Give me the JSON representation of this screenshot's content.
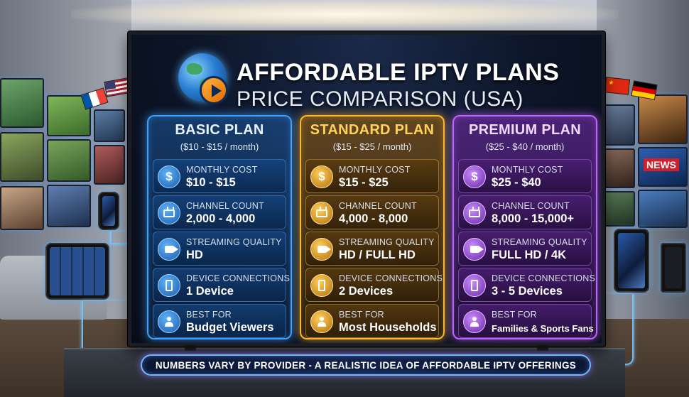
{
  "header": {
    "title_line1": "AFFORDABLE IPTV PLANS",
    "title_line2": "PRICE COMPARISON (USA)"
  },
  "plans": [
    {
      "name": "BASIC PLAN",
      "price_range": "($10 - $15 / month)",
      "accent": "#3ea0ff",
      "rows": [
        {
          "icon": "dollar-icon",
          "label": "MONTHLY COST",
          "value": "$10 - $15"
        },
        {
          "icon": "tv-icon",
          "label": "CHANNEL COUNT",
          "value": "2,000 - 4,000"
        },
        {
          "icon": "video-camera-icon",
          "label": "STREAMING QUALITY",
          "value": "HD"
        },
        {
          "icon": "smartphone-icon",
          "label": "DEVICE CONNECTIONS",
          "value": "1 Device"
        },
        {
          "icon": "user-icon",
          "label": "BEST FOR",
          "value": "Budget Viewers"
        }
      ]
    },
    {
      "name": "STANDARD PLAN",
      "price_range": "($15 - $25 / month)",
      "accent": "#ffb627",
      "rows": [
        {
          "icon": "dollar-icon",
          "label": "MONTHLY COST",
          "value": "$15 - $25"
        },
        {
          "icon": "tv-icon",
          "label": "CHANNEL COUNT",
          "value": "4,000 - 8,000"
        },
        {
          "icon": "video-camera-icon",
          "label": "STREAMING QUALITY",
          "value": "HD / FULL HD"
        },
        {
          "icon": "smartphone-icon",
          "label": "DEVICE CONNECTIONS",
          "value": "2 Devices"
        },
        {
          "icon": "user-icon",
          "label": "BEST FOR",
          "value": "Most Households"
        }
      ]
    },
    {
      "name": "PREMIUM PLAN",
      "price_range": "($25 - $40 / month)",
      "accent": "#c163ff",
      "rows": [
        {
          "icon": "dollar-icon",
          "label": "MONTHLY COST",
          "value": "$25 - $40"
        },
        {
          "icon": "tv-icon",
          "label": "CHANNEL COUNT",
          "value": "8,000 - 15,000+"
        },
        {
          "icon": "video-camera-icon",
          "label": "STREAMING QUALITY",
          "value": "FULL HD / 4K"
        },
        {
          "icon": "smartphone-icon",
          "label": "DEVICE CONNECTIONS",
          "value": "3 - 5 Devices"
        },
        {
          "icon": "user-icon",
          "label": "BEST FOR",
          "value": "Families & Sports Fans"
        }
      ]
    }
  ],
  "footer": {
    "banner_text": "NUMBERS VARY BY PROVIDER - A REALISTIC IDEA OF AFFORDABLE IPTV OFFERINGS"
  },
  "decor": {
    "news_sign": "NEWS",
    "colors": {
      "basic": "#3ea0ff",
      "standard": "#ffb627",
      "premium": "#c163ff"
    }
  }
}
